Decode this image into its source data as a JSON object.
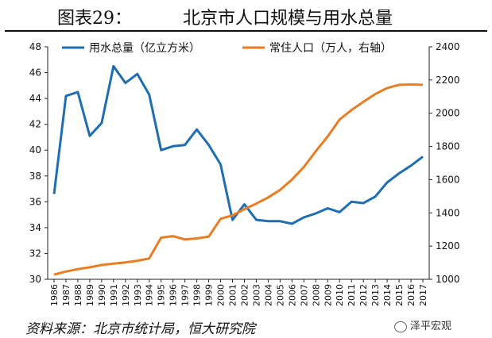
{
  "header": {
    "figure_number": "图表29：",
    "title": "北京市人口规模与用水总量"
  },
  "footer": {
    "source": "资料来源：北京市统计局，恒大研究院",
    "brand": "泽平宏观"
  },
  "colors": {
    "water": "#1f6eb3",
    "population": "#ea7d22",
    "axis": "#222222"
  },
  "chart_data": {
    "type": "line",
    "x": [
      "1986",
      "1987",
      "1988",
      "1989",
      "1990",
      "1991",
      "1992",
      "1993",
      "1994",
      "1995",
      "1996",
      "1997",
      "1998",
      "1999",
      "2000",
      "2001",
      "2002",
      "2003",
      "2004",
      "2005",
      "2006",
      "2007",
      "2008",
      "2009",
      "2010",
      "2011",
      "2012",
      "2013",
      "2014",
      "2015",
      "2016",
      "2017"
    ],
    "series": [
      {
        "name": "用水总量（亿立方米）",
        "axis": "left",
        "values": [
          36.6,
          44.2,
          44.5,
          41.1,
          42.1,
          46.5,
          45.2,
          45.9,
          44.3,
          40.0,
          40.3,
          40.4,
          41.6,
          40.4,
          38.9,
          34.6,
          35.8,
          34.6,
          34.5,
          34.5,
          34.3,
          34.8,
          35.1,
          35.5,
          35.2,
          36.0,
          35.9,
          36.4,
          37.5,
          38.2,
          38.8,
          39.5
        ]
      },
      {
        "name": "常住人口（万人，右轴）",
        "axis": "right",
        "values": [
          1028,
          1047,
          1061,
          1072,
          1086,
          1094,
          1102,
          1112,
          1125,
          1251,
          1260,
          1240,
          1246,
          1257,
          1364,
          1385,
          1423,
          1456,
          1493,
          1538,
          1601,
          1676,
          1771,
          1860,
          1962,
          2019,
          2069,
          2115,
          2152,
          2171,
          2173,
          2171
        ]
      }
    ],
    "y_left": {
      "min": 30,
      "max": 48,
      "ticks": [
        "30",
        "32",
        "34",
        "36",
        "38",
        "40",
        "42",
        "44",
        "46",
        "48"
      ]
    },
    "y_right": {
      "min": 1000,
      "max": 2400,
      "ticks": [
        "1000",
        "1200",
        "1400",
        "1600",
        "1800",
        "2000",
        "2200",
        "2400"
      ]
    },
    "grid": false,
    "legend_placement": "top"
  }
}
